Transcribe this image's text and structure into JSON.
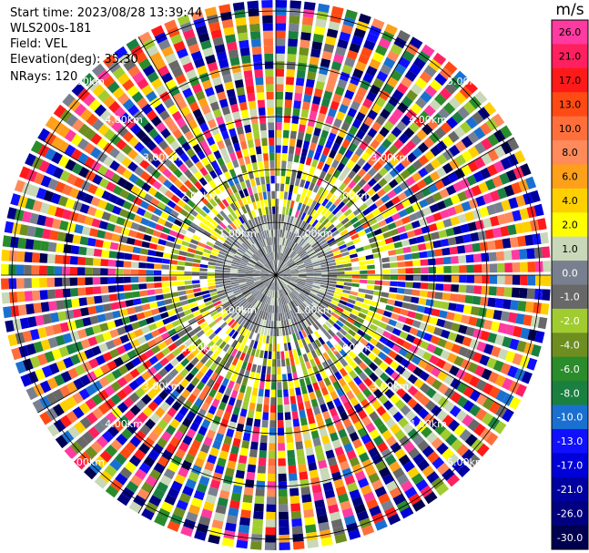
{
  "header": {
    "start_time": "Start time: 2023/08/28 13:39:44",
    "instrument": "WLS200s-181",
    "field": "Field: VEL",
    "elevation": "Elevation(deg): 35.30",
    "nrays": "NRays: 120"
  },
  "chart_data": {
    "type": "heatmap",
    "projection": "polar (PPI)",
    "range_ring_labels": [
      "1.00km",
      "2.00km",
      "3.00km",
      "4.00km",
      "5.00km"
    ],
    "colorbar": {
      "unit": "m/s",
      "ticks": [
        "26.0",
        "21.0",
        "17.0",
        "13.0",
        "10.0",
        "8.0",
        "6.0",
        "4.0",
        "2.0",
        "1.0",
        "0.0",
        "-1.0",
        "-2.0",
        "-4.0",
        "-6.0",
        "-8.0",
        "-10.0",
        "-13.0",
        "-17.0",
        "-21.0",
        "-26.0",
        "-30.0"
      ],
      "colors": [
        "#ff3aa0",
        "#ff2060",
        "#ff1a1a",
        "#ff4a14",
        "#ff6f3c",
        "#ff8a5a",
        "#ffa01a",
        "#ffd000",
        "#ffff00",
        "#c8d8b8",
        "#788090",
        "#686868",
        "#a0cc30",
        "#6e8e20",
        "#2a8c2a",
        "#1a8040",
        "#1a70d0",
        "#1010ff",
        "#0000d8",
        "#0000a0",
        "#000080",
        "#000050"
      ]
    }
  }
}
